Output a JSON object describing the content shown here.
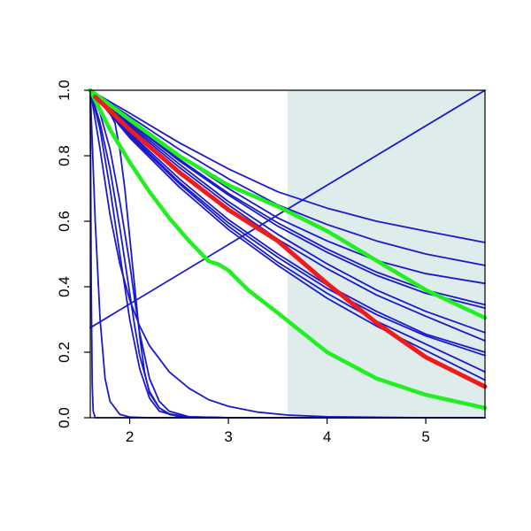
{
  "chart_data": {
    "type": "line",
    "title": "",
    "xlabel": "",
    "ylabel": "",
    "xlim": [
      1.6,
      5.6
    ],
    "ylim": [
      0.0,
      1.0
    ],
    "x_ticks": [
      {
        "value": 2,
        "label": "2"
      },
      {
        "value": 3,
        "label": "3"
      },
      {
        "value": 4,
        "label": "4"
      },
      {
        "value": 5,
        "label": "5"
      }
    ],
    "y_ticks": [
      {
        "value": 0.0,
        "label": "0.0"
      },
      {
        "value": 0.2,
        "label": "0.2"
      },
      {
        "value": 0.4,
        "label": "0.4"
      },
      {
        "value": 0.6,
        "label": "0.6"
      },
      {
        "value": 0.8,
        "label": "0.8"
      },
      {
        "value": 1.0,
        "label": "1.0"
      }
    ],
    "grid": false,
    "legend": "none",
    "shaded_region": {
      "x_start": 3.6,
      "x_end": 5.6,
      "color": "#deecec"
    },
    "colors": {
      "series": "#1a1acd",
      "highlight_red": "#ee1c1c",
      "highlight_green": "#22ee22",
      "axis": "#000000"
    },
    "series": [
      {
        "color": "#1a1acd",
        "width": 1.8,
        "points": [
          [
            1.6,
            1.0
          ],
          [
            2.0,
            0.93
          ],
          [
            2.5,
            0.84
          ],
          [
            3.0,
            0.76
          ],
          [
            3.5,
            0.69
          ],
          [
            4.0,
            0.64
          ],
          [
            4.5,
            0.6
          ],
          [
            5.0,
            0.57
          ],
          [
            5.6,
            0.535
          ]
        ]
      },
      {
        "color": "#1a1acd",
        "width": 1.8,
        "points": [
          [
            1.6,
            1.0
          ],
          [
            2.0,
            0.92
          ],
          [
            2.5,
            0.82
          ],
          [
            3.0,
            0.73
          ],
          [
            3.5,
            0.65
          ],
          [
            4.0,
            0.59
          ],
          [
            4.5,
            0.54
          ],
          [
            5.0,
            0.5
          ],
          [
            5.6,
            0.465
          ]
        ]
      },
      {
        "color": "#1a1acd",
        "width": 1.8,
        "points": [
          [
            1.6,
            1.0
          ],
          [
            2.0,
            0.91
          ],
          [
            2.5,
            0.8
          ],
          [
            3.0,
            0.7
          ],
          [
            3.5,
            0.61
          ],
          [
            4.0,
            0.54
          ],
          [
            4.5,
            0.48
          ],
          [
            5.0,
            0.44
          ],
          [
            5.6,
            0.41
          ]
        ]
      },
      {
        "color": "#1a1acd",
        "width": 1.8,
        "points": [
          [
            1.6,
            1.0
          ],
          [
            2.0,
            0.905
          ],
          [
            2.5,
            0.79
          ],
          [
            3.0,
            0.685
          ],
          [
            3.5,
            0.595
          ],
          [
            4.0,
            0.515
          ],
          [
            4.5,
            0.445
          ],
          [
            5.0,
            0.39
          ],
          [
            5.6,
            0.345
          ]
        ]
      },
      {
        "color": "#1a1acd",
        "width": 1.8,
        "points": [
          [
            1.6,
            1.0
          ],
          [
            2.0,
            0.9
          ],
          [
            2.5,
            0.785
          ],
          [
            3.0,
            0.68
          ],
          [
            3.5,
            0.585
          ],
          [
            4.0,
            0.505
          ],
          [
            4.5,
            0.435
          ],
          [
            5.0,
            0.38
          ],
          [
            5.6,
            0.335
          ]
        ]
      },
      {
        "color": "#1a1acd",
        "width": 1.8,
        "points": [
          [
            1.6,
            1.0
          ],
          [
            2.0,
            0.895
          ],
          [
            2.5,
            0.775
          ],
          [
            3.0,
            0.66
          ],
          [
            3.5,
            0.56
          ],
          [
            4.0,
            0.47
          ],
          [
            4.5,
            0.39
          ],
          [
            5.0,
            0.325
          ],
          [
            5.6,
            0.26
          ]
        ]
      },
      {
        "color": "#1a1acd",
        "width": 1.8,
        "points": [
          [
            1.6,
            1.0
          ],
          [
            2.0,
            0.89
          ],
          [
            2.5,
            0.765
          ],
          [
            3.0,
            0.65
          ],
          [
            3.5,
            0.545
          ],
          [
            4.0,
            0.455
          ],
          [
            4.5,
            0.375
          ],
          [
            5.0,
            0.31
          ],
          [
            5.6,
            0.235
          ]
        ]
      },
      {
        "color": "#1a1acd",
        "width": 1.8,
        "points": [
          [
            1.6,
            1.0
          ],
          [
            2.0,
            0.87
          ],
          [
            2.5,
            0.73
          ],
          [
            3.0,
            0.605
          ],
          [
            3.5,
            0.5
          ],
          [
            4.0,
            0.405
          ],
          [
            4.5,
            0.325
          ],
          [
            5.0,
            0.255
          ],
          [
            5.6,
            0.2
          ]
        ]
      },
      {
        "color": "#1a1acd",
        "width": 1.8,
        "points": [
          [
            1.6,
            1.0
          ],
          [
            2.0,
            0.865
          ],
          [
            2.5,
            0.72
          ],
          [
            3.0,
            0.595
          ],
          [
            3.5,
            0.49
          ],
          [
            4.0,
            0.395
          ],
          [
            4.5,
            0.315
          ],
          [
            5.0,
            0.25
          ],
          [
            5.6,
            0.19
          ]
        ]
      },
      {
        "color": "#1a1acd",
        "width": 1.8,
        "points": [
          [
            1.6,
            1.0
          ],
          [
            2.0,
            0.86
          ],
          [
            2.5,
            0.715
          ],
          [
            3.0,
            0.585
          ],
          [
            3.5,
            0.475
          ],
          [
            4.0,
            0.38
          ],
          [
            4.5,
            0.295
          ],
          [
            5.0,
            0.225
          ],
          [
            5.6,
            0.14
          ]
        ]
      },
      {
        "color": "#1a1acd",
        "width": 1.8,
        "points": [
          [
            1.6,
            1.0
          ],
          [
            2.0,
            0.855
          ],
          [
            2.5,
            0.705
          ],
          [
            3.0,
            0.575
          ],
          [
            3.5,
            0.465
          ],
          [
            4.0,
            0.365
          ],
          [
            4.5,
            0.28
          ],
          [
            5.0,
            0.205
          ],
          [
            5.6,
            0.115
          ]
        ]
      },
      {
        "color": "#1a1acd",
        "width": 1.8,
        "points": [
          [
            1.6,
            0.275
          ],
          [
            5.6,
            1.0
          ]
        ]
      },
      {
        "color": "#1a1acd",
        "width": 1.8,
        "points": [
          [
            1.6,
            1.0
          ],
          [
            1.7,
            0.82
          ],
          [
            1.8,
            0.62
          ],
          [
            1.9,
            0.47
          ],
          [
            2.0,
            0.36
          ],
          [
            2.1,
            0.28
          ],
          [
            2.2,
            0.22
          ],
          [
            2.4,
            0.14
          ],
          [
            2.6,
            0.09
          ],
          [
            2.8,
            0.055
          ],
          [
            3.0,
            0.035
          ],
          [
            3.3,
            0.017
          ],
          [
            3.6,
            0.008
          ],
          [
            4.0,
            0.003
          ],
          [
            5.0,
            0.0
          ],
          [
            5.6,
            0.0
          ]
        ]
      },
      {
        "color": "#1a1acd",
        "width": 1.8,
        "points": [
          [
            1.6,
            1.0
          ],
          [
            1.75,
            0.96
          ],
          [
            1.85,
            0.9
          ],
          [
            1.9,
            0.82
          ],
          [
            1.95,
            0.7
          ],
          [
            2.0,
            0.55
          ],
          [
            2.05,
            0.4
          ],
          [
            2.1,
            0.25
          ],
          [
            2.15,
            0.14
          ],
          [
            2.2,
            0.075
          ],
          [
            2.3,
            0.03
          ],
          [
            2.4,
            0.012
          ],
          [
            2.6,
            0.002
          ],
          [
            3.0,
            0.0
          ],
          [
            5.6,
            0.0
          ]
        ]
      },
      {
        "color": "#1a1acd",
        "width": 1.8,
        "points": [
          [
            1.6,
            1.0
          ],
          [
            1.7,
            0.93
          ],
          [
            1.8,
            0.82
          ],
          [
            1.9,
            0.66
          ],
          [
            2.0,
            0.47
          ],
          [
            2.05,
            0.36
          ],
          [
            2.1,
            0.26
          ],
          [
            2.2,
            0.12
          ],
          [
            2.3,
            0.05
          ],
          [
            2.4,
            0.02
          ],
          [
            2.6,
            0.003
          ],
          [
            3.0,
            0.0
          ],
          [
            5.6,
            0.0
          ]
        ]
      },
      {
        "color": "#1a1acd",
        "width": 1.8,
        "points": [
          [
            1.6,
            1.0
          ],
          [
            1.7,
            0.9
          ],
          [
            1.8,
            0.76
          ],
          [
            1.9,
            0.58
          ],
          [
            2.0,
            0.38
          ],
          [
            2.05,
            0.28
          ],
          [
            2.1,
            0.19
          ],
          [
            2.2,
            0.08
          ],
          [
            2.3,
            0.03
          ],
          [
            2.4,
            0.01
          ],
          [
            2.6,
            0.0
          ],
          [
            5.6,
            0.0
          ]
        ]
      },
      {
        "color": "#1a1acd",
        "width": 1.8,
        "points": [
          [
            1.6,
            1.0
          ],
          [
            1.7,
            0.88
          ],
          [
            1.8,
            0.7
          ],
          [
            1.9,
            0.5
          ],
          [
            2.0,
            0.3
          ],
          [
            2.1,
            0.15
          ],
          [
            2.2,
            0.06
          ],
          [
            2.3,
            0.02
          ],
          [
            2.5,
            0.003
          ],
          [
            3.0,
            0.0
          ],
          [
            5.6,
            0.0
          ]
        ]
      },
      {
        "color": "#1a1acd",
        "width": 1.8,
        "points": [
          [
            1.6,
            1.0
          ],
          [
            1.65,
            0.6
          ],
          [
            1.7,
            0.3
          ],
          [
            1.75,
            0.12
          ],
          [
            1.8,
            0.05
          ],
          [
            1.9,
            0.01
          ],
          [
            2.0,
            0.002
          ],
          [
            2.2,
            0.0
          ],
          [
            5.6,
            0.0
          ]
        ]
      },
      {
        "color": "#1a1acd",
        "width": 1.8,
        "points": [
          [
            1.6,
            1.0
          ],
          [
            1.61,
            0.4
          ],
          [
            1.62,
            0.1
          ],
          [
            1.63,
            0.02
          ],
          [
            1.65,
            0.0
          ],
          [
            5.6,
            0.0
          ]
        ]
      },
      {
        "color": "#22ee22",
        "width": 4.5,
        "points": [
          [
            1.6,
            1.0
          ],
          [
            2.0,
            0.91
          ],
          [
            2.5,
            0.8
          ],
          [
            3.0,
            0.71
          ],
          [
            3.5,
            0.645
          ],
          [
            4.0,
            0.57
          ],
          [
            4.5,
            0.48
          ],
          [
            5.0,
            0.39
          ],
          [
            5.6,
            0.305
          ]
        ]
      },
      {
        "color": "#22ee22",
        "width": 4.5,
        "points": [
          [
            1.6,
            1.0
          ],
          [
            1.8,
            0.88
          ],
          [
            2.0,
            0.78
          ],
          [
            2.2,
            0.69
          ],
          [
            2.4,
            0.61
          ],
          [
            2.6,
            0.54
          ],
          [
            2.8,
            0.478
          ],
          [
            2.9,
            0.468
          ],
          [
            3.0,
            0.45
          ],
          [
            3.2,
            0.39
          ],
          [
            3.5,
            0.32
          ],
          [
            4.0,
            0.2
          ],
          [
            4.5,
            0.12
          ],
          [
            5.0,
            0.07
          ],
          [
            5.6,
            0.03
          ]
        ]
      },
      {
        "color": "#ee1c1c",
        "width": 5,
        "points": [
          [
            1.65,
            0.98
          ],
          [
            2.0,
            0.88
          ],
          [
            2.5,
            0.75
          ],
          [
            3.0,
            0.635
          ],
          [
            3.5,
            0.54
          ],
          [
            4.0,
            0.41
          ],
          [
            4.5,
            0.29
          ],
          [
            5.0,
            0.185
          ],
          [
            5.6,
            0.095
          ]
        ]
      }
    ]
  }
}
